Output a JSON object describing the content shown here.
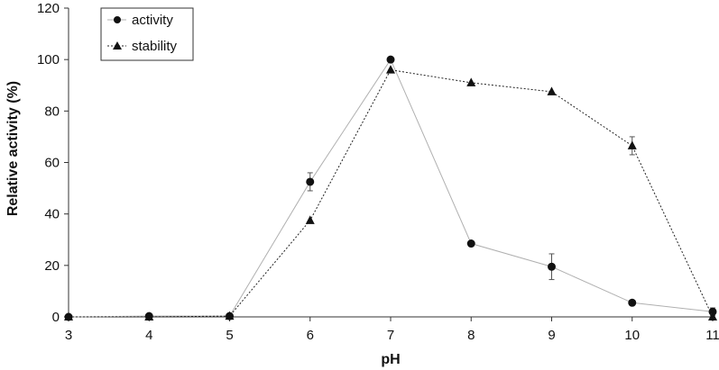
{
  "chart_data": {
    "type": "line",
    "xlabel": "pH",
    "ylabel": "Relative activity (%)",
    "xlim": [
      3,
      11
    ],
    "ylim": [
      0,
      120
    ],
    "x_ticks": [
      3,
      4,
      5,
      6,
      7,
      8,
      9,
      10,
      11
    ],
    "y_ticks": [
      0,
      20,
      40,
      60,
      80,
      100,
      120
    ],
    "grid": false,
    "legend_position": "top-left",
    "series": [
      {
        "name": "activity",
        "marker": "circle",
        "line_style": "solid",
        "color": "#b0b0b0",
        "x": [
          3,
          4,
          5,
          6,
          7,
          8,
          9,
          10,
          11
        ],
        "y": [
          0,
          0.3,
          0.3,
          52.5,
          100,
          28.5,
          19.5,
          5.5,
          2
        ],
        "error": [
          0,
          0,
          0,
          3.5,
          0,
          0,
          5,
          0,
          1.5
        ]
      },
      {
        "name": "stability",
        "marker": "triangle",
        "line_style": "dotted",
        "color": "#222222",
        "x": [
          3,
          4,
          5,
          6,
          7,
          8,
          9,
          10,
          11
        ],
        "y": [
          0,
          0,
          0.3,
          37.5,
          96,
          91,
          87.5,
          66.5,
          0
        ],
        "error": [
          0,
          0,
          0,
          0,
          0,
          0,
          0,
          3.5,
          0
        ]
      }
    ]
  }
}
